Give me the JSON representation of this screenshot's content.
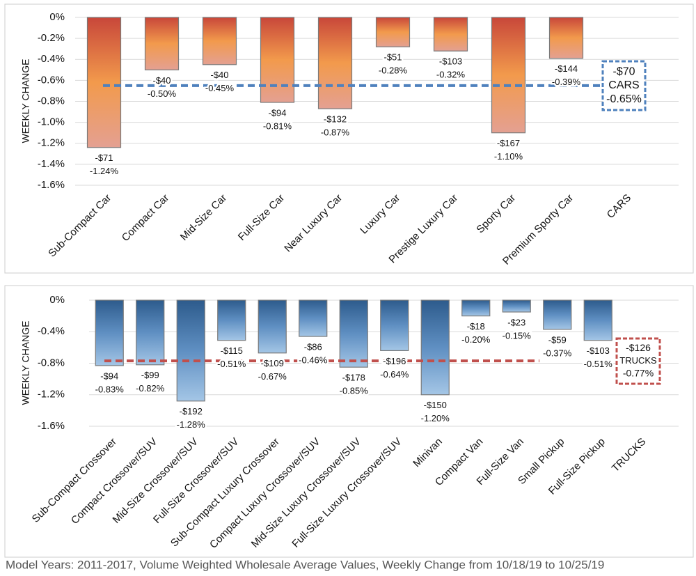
{
  "chart_data": [
    {
      "type": "bar",
      "ylabel": "WEEKLY CHANGE",
      "categories": [
        "Sub-Compact Car",
        "Compact Car",
        "Mid-Size Car",
        "Full-Size Car",
        "Near Luxury Car",
        "Luxury Car",
        "Prestige Luxury Car",
        "Sporty Car",
        "Premium Sporty Car",
        "CARS"
      ],
      "values": [
        -1.24,
        -0.5,
        -0.45,
        -0.81,
        -0.87,
        -0.28,
        -0.32,
        -1.1,
        -0.39,
        null
      ],
      "value_labels": [
        "-1.24%",
        "-0.50%",
        "-0.45%",
        "-0.81%",
        "-0.87%",
        "-0.28%",
        "-0.32%",
        "-1.10%",
        "-0.39%",
        null
      ],
      "dollar_labels": [
        "-$71",
        "-$40",
        "-$40",
        "-$94",
        "-$132",
        "-$51",
        "-$103",
        "-$167",
        "-$144",
        null
      ],
      "average": {
        "label": "CARS",
        "value": -0.65,
        "value_label": "-0.65%",
        "dollar_label": "-$70"
      },
      "ylim": [
        -1.6,
        0
      ],
      "yticks": [
        {
          "value": 0,
          "label": "0%"
        },
        {
          "value": -0.2,
          "label": "-0.2%"
        },
        {
          "value": -0.4,
          "label": "-0.4%"
        },
        {
          "value": -0.6,
          "label": "-0.6%"
        },
        {
          "value": -0.8,
          "label": "-0.8%"
        },
        {
          "value": -1.0,
          "label": "-1.0%"
        },
        {
          "value": -1.2,
          "label": "-1.2%"
        },
        {
          "value": -1.4,
          "label": "-1.4%"
        },
        {
          "value": -1.6,
          "label": "-1.6%"
        }
      ],
      "grid": true,
      "colors": [
        "#c8473a",
        "#f29a4c",
        "#e4a092"
      ],
      "average_color": "#4f81bd"
    },
    {
      "type": "bar",
      "ylabel": "WEEKLY CHANGE",
      "categories": [
        "Sub-Compact Crossover",
        "Compact Crossover/SUV",
        "Mid-Size Crossover/SUV",
        "Full-Size Crossover/SUV",
        "Sub-Compact Luxury Crossover",
        "Compact Luxury Crossover/SUV",
        "Mid-Size Luxury Crossover/SUV",
        "Full-Size Luxury Crossover/SUV",
        "Minivan",
        "Compact Van",
        "Full-Size Van",
        "Small Pickup",
        "Full-Size Pickup",
        "TRUCKS"
      ],
      "values": [
        -0.83,
        -0.82,
        -1.28,
        -0.51,
        -0.67,
        -0.46,
        -0.85,
        -0.64,
        -1.2,
        -0.2,
        -0.15,
        -0.37,
        -0.51,
        null
      ],
      "value_labels": [
        "-0.83%",
        "-0.82%",
        "-1.28%",
        "-0.51%",
        "-0.67%",
        "-0.46%",
        "-0.85%",
        "-0.64%",
        "-1.20%",
        "-0.20%",
        "-0.15%",
        "-0.37%",
        "-0.51%",
        null
      ],
      "dollar_labels": [
        "-$94",
        "-$99",
        "-$192",
        "-$115",
        "-$109",
        "-$86",
        "-$178",
        "-$196",
        "-$150",
        "-$18",
        "-$23",
        "-$59",
        "-$103",
        null
      ],
      "average": {
        "label": "TRUCKS",
        "value": -0.77,
        "value_label": "-0.77%",
        "dollar_label": "-$126"
      },
      "ylim": [
        -1.6,
        0
      ],
      "yticks": [
        {
          "value": 0,
          "label": "0%"
        },
        {
          "value": -0.4,
          "label": "-0.4%"
        },
        {
          "value": -0.8,
          "label": "-0.8%"
        },
        {
          "value": -1.2,
          "label": "-1.2%"
        },
        {
          "value": -1.6,
          "label": "-1.6%"
        }
      ],
      "grid": true,
      "colors": [
        "#2d5b8c",
        "#5f8fc2",
        "#a4c6e6"
      ],
      "average_color": "#c0504d"
    }
  ],
  "caption": "Model Years: 2011-2017, Volume Weighted Wholesale Average Values, Weekly Change from 10/18/19 to 10/25/19"
}
